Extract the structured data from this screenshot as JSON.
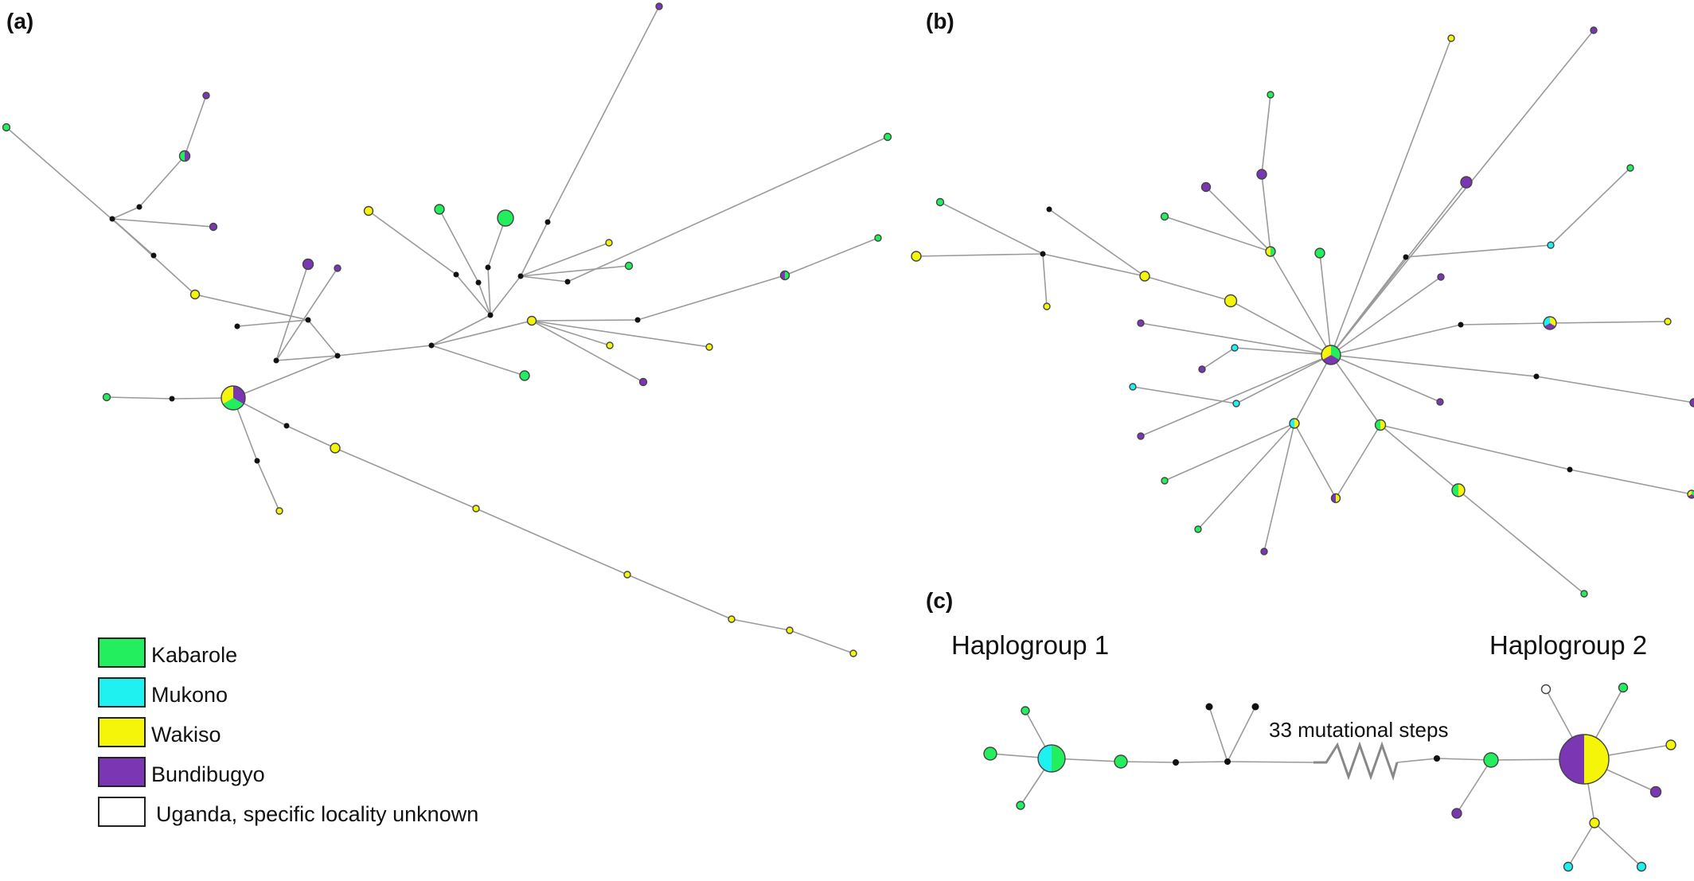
{
  "panels": {
    "a": "(a)",
    "b": "(b)",
    "c": "(c)"
  },
  "haplogroups": {
    "h1": "Haplogroup 1",
    "h2": "Haplogroup 2",
    "steps": "33 mutational steps"
  },
  "legend": [
    {
      "label": "Kabarole",
      "color": "#22ee5e"
    },
    {
      "label": "Mukono",
      "color": "#1ff0f0"
    },
    {
      "label": "Wakiso",
      "color": "#f5f50a"
    },
    {
      "label": "Bundibugyo",
      "color": "#7a36b3"
    },
    {
      "label": "Uganda, specific locality unknown",
      "color": "#ffffff"
    }
  ]
}
